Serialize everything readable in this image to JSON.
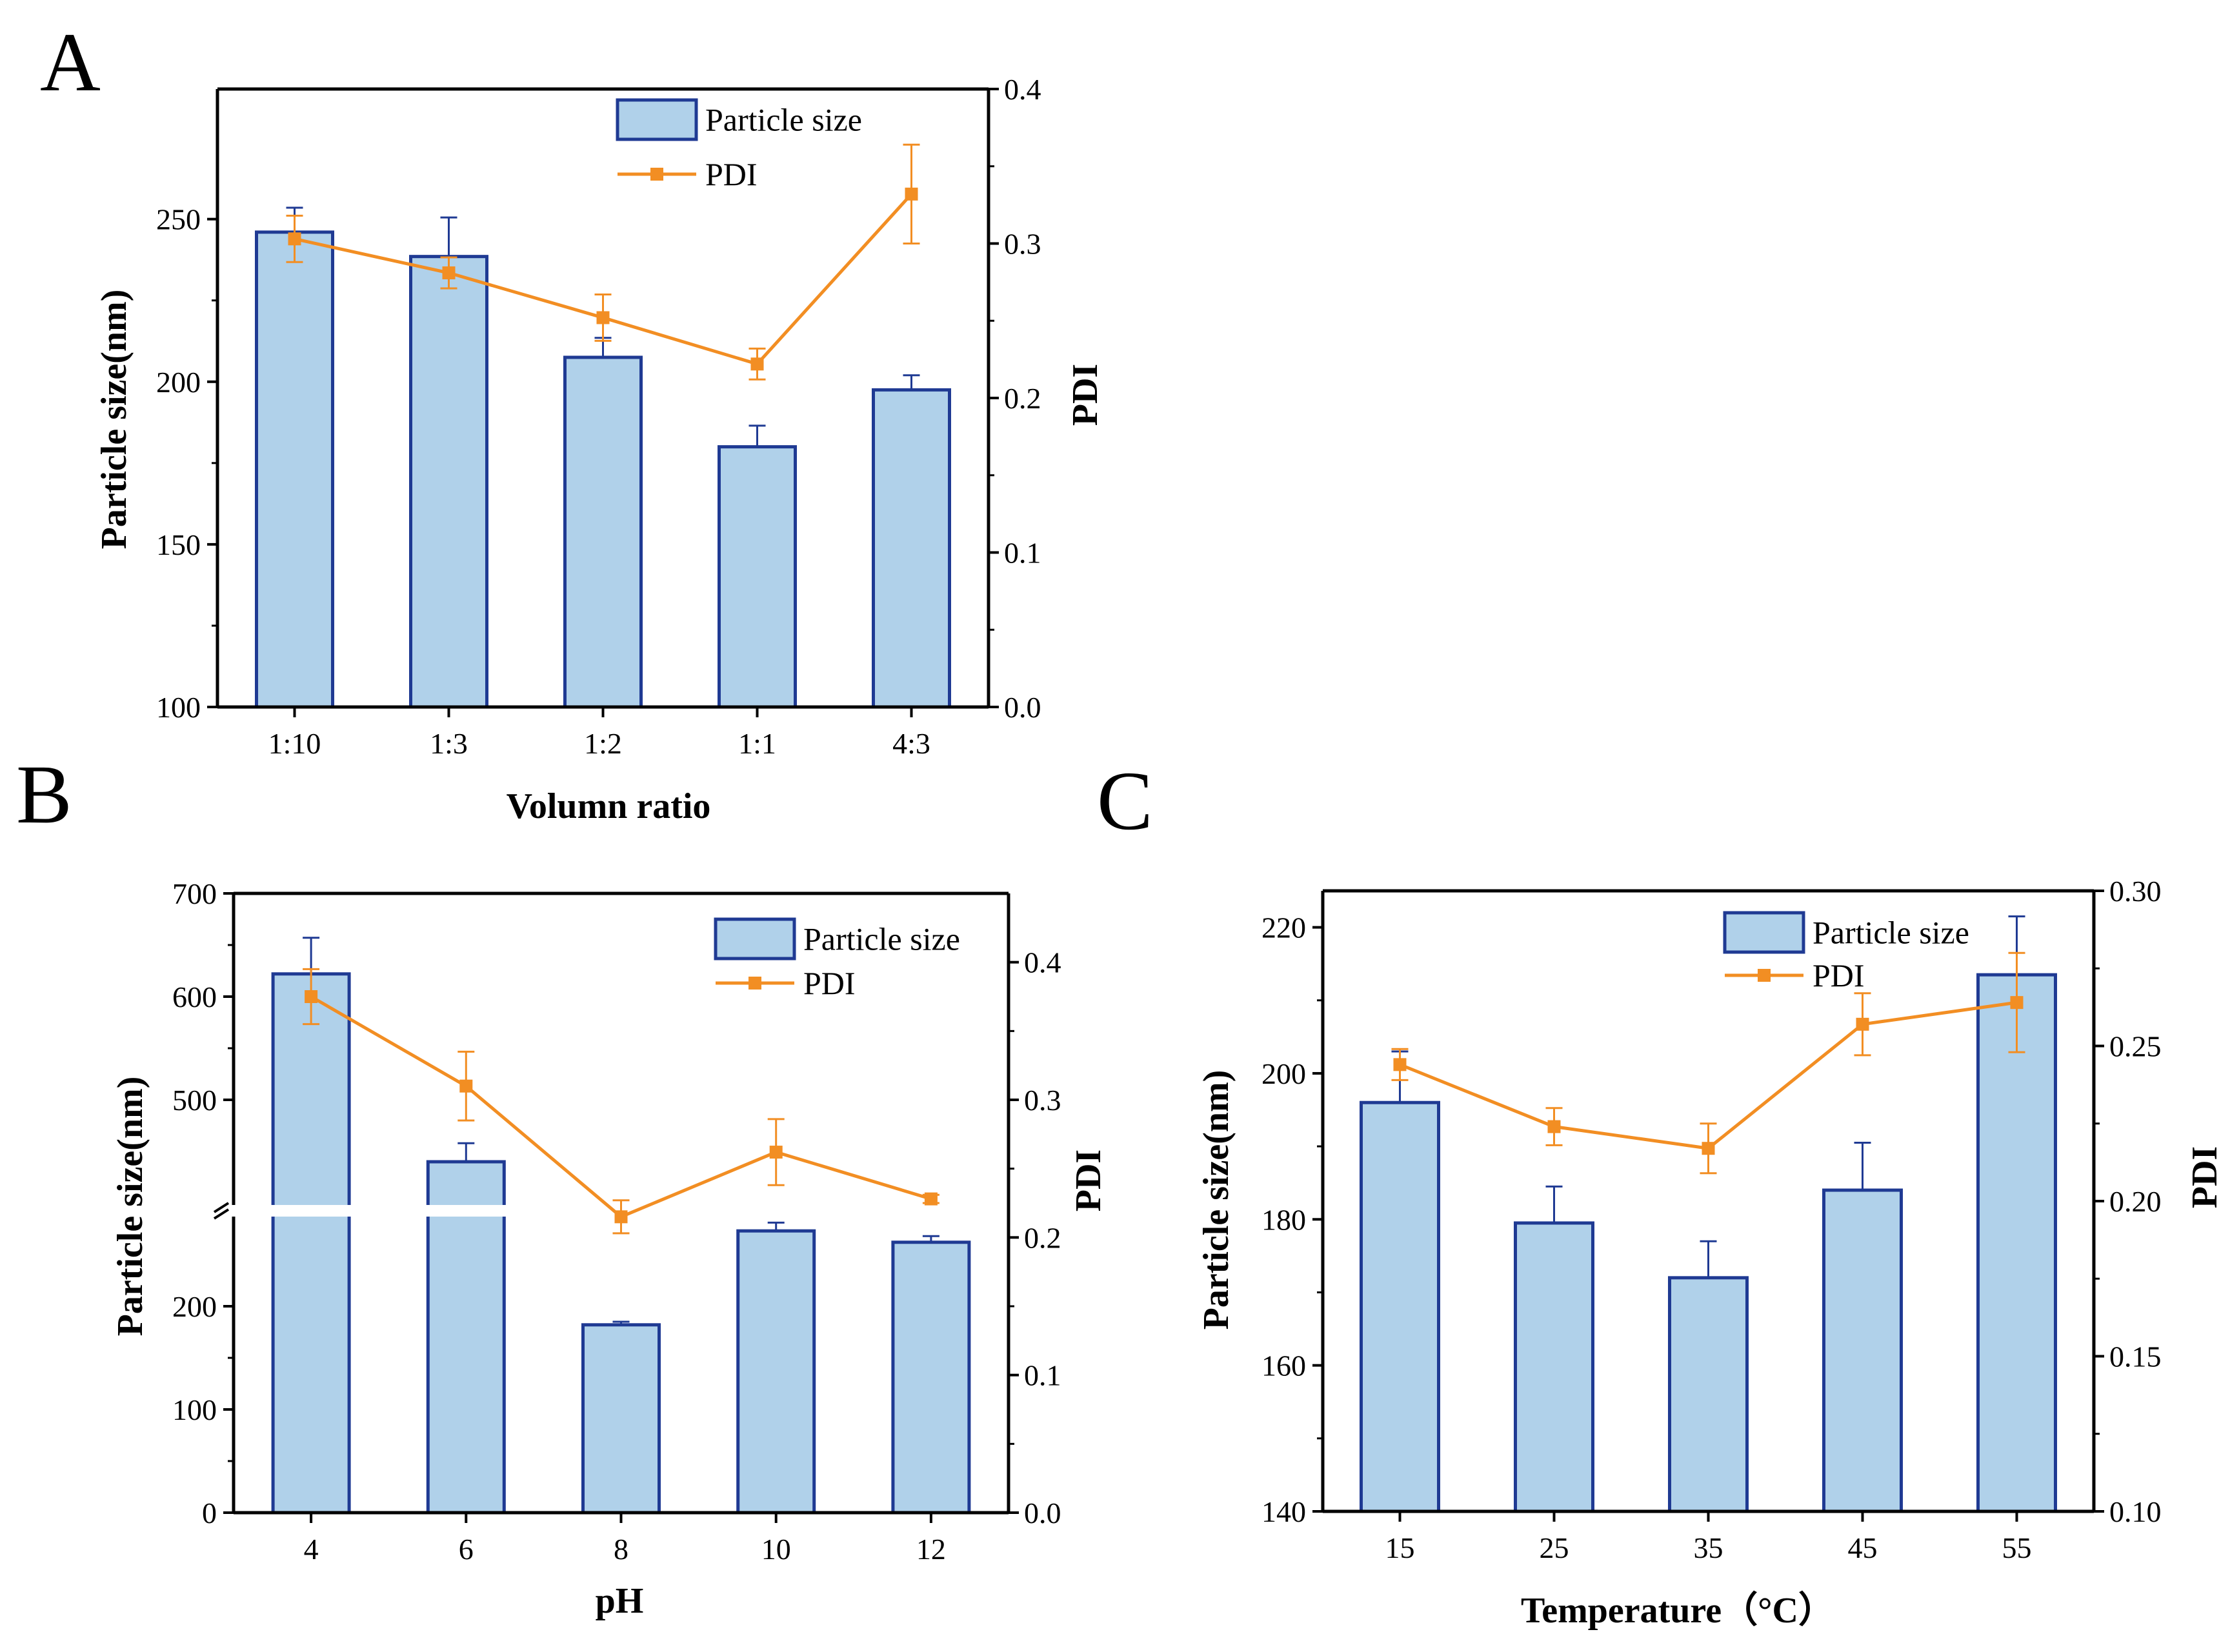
{
  "colors": {
    "bar_fill": "#b0d1ea",
    "bar_edge": "#1f3a93",
    "line": "#f28e23",
    "axis": "#000000"
  },
  "chart_data": [
    {
      "panel": "A",
      "type": "bar+line",
      "categories": [
        "1:10",
        "1:3",
        "1:2",
        "1:1",
        "4:3"
      ],
      "xlabel": "Volumn ratio",
      "ylabel": "Particle size(nm)",
      "y2label": "PDI",
      "ylim": [
        100,
        290
      ],
      "y2lim": [
        0.0,
        0.4
      ],
      "yticks": [
        "100",
        "150",
        "200",
        "250"
      ],
      "ytick_values": [
        100,
        150,
        200,
        250
      ],
      "y2ticks": [
        "0.0",
        "0.1",
        "0.2",
        "0.3",
        "0.4"
      ],
      "y2tick_values": [
        0.0,
        0.1,
        0.2,
        0.3,
        0.4
      ],
      "series": [
        {
          "name": "Particle size",
          "type": "bar",
          "values": [
            246,
            238.5,
            207.5,
            180,
            197.5
          ],
          "errors": [
            7.5,
            12,
            6,
            6.5,
            4.5
          ]
        },
        {
          "name": "PDI",
          "type": "line",
          "values": [
            0.303,
            0.281,
            0.252,
            0.222,
            0.332
          ],
          "errors": [
            0.015,
            0.01,
            0.015,
            0.01,
            0.032
          ]
        }
      ],
      "legend_position": "top-right"
    },
    {
      "panel": "B",
      "type": "bar+line",
      "categories": [
        "4",
        "6",
        "8",
        "10",
        "12"
      ],
      "xlabel": "pH",
      "ylabel": "Particle size(nm)",
      "y2label": "PDI",
      "ylim": [
        0,
        700
      ],
      "y2lim": [
        0.0,
        0.45
      ],
      "yticks": [
        "0",
        "100",
        "200",
        "500",
        "600",
        "700"
      ],
      "ytick_values": [
        0,
        100,
        200,
        500,
        600,
        700
      ],
      "y2ticks": [
        "0.0",
        "0.1",
        "0.2",
        "0.3",
        "0.4"
      ],
      "y2tick_values": [
        0.0,
        0.1,
        0.2,
        0.3,
        0.4
      ],
      "axis_break": "between 300 and 400",
      "series": [
        {
          "name": "Particle size",
          "type": "bar",
          "values": [
            622,
            440,
            182,
            273,
            262
          ],
          "errors": [
            35,
            18,
            3,
            8,
            6
          ]
        },
        {
          "name": "PDI",
          "type": "line",
          "values": [
            0.375,
            0.31,
            0.215,
            0.262,
            0.228
          ],
          "errors": [
            0.02,
            0.025,
            0.012,
            0.024,
            0.003
          ]
        }
      ],
      "legend_position": "top-right"
    },
    {
      "panel": "C",
      "type": "bar+line",
      "categories": [
        "15",
        "25",
        "35",
        "45",
        "55"
      ],
      "xlabel": "Temperature（°C）",
      "ylabel": "Particle size(nm)",
      "y2label": "PDI",
      "ylim": [
        140,
        225
      ],
      "y2lim": [
        0.1,
        0.3
      ],
      "yticks": [
        "140",
        "160",
        "180",
        "200",
        "220"
      ],
      "ytick_values": [
        140,
        160,
        180,
        200,
        220
      ],
      "y2ticks": [
        "0.10",
        "0.15",
        "0.20",
        "0.25",
        "0.30"
      ],
      "y2tick_values": [
        0.1,
        0.15,
        0.2,
        0.25,
        0.3
      ],
      "series": [
        {
          "name": "Particle size",
          "type": "bar",
          "values": [
            196,
            179.5,
            172,
            184,
            213.5
          ],
          "errors": [
            7,
            5,
            5,
            6.5,
            8
          ]
        },
        {
          "name": "PDI",
          "type": "line",
          "values": [
            0.244,
            0.224,
            0.217,
            0.257,
            0.264
          ],
          "errors": [
            0.005,
            0.006,
            0.008,
            0.01,
            0.016
          ]
        }
      ],
      "legend_position": "top-right"
    }
  ]
}
